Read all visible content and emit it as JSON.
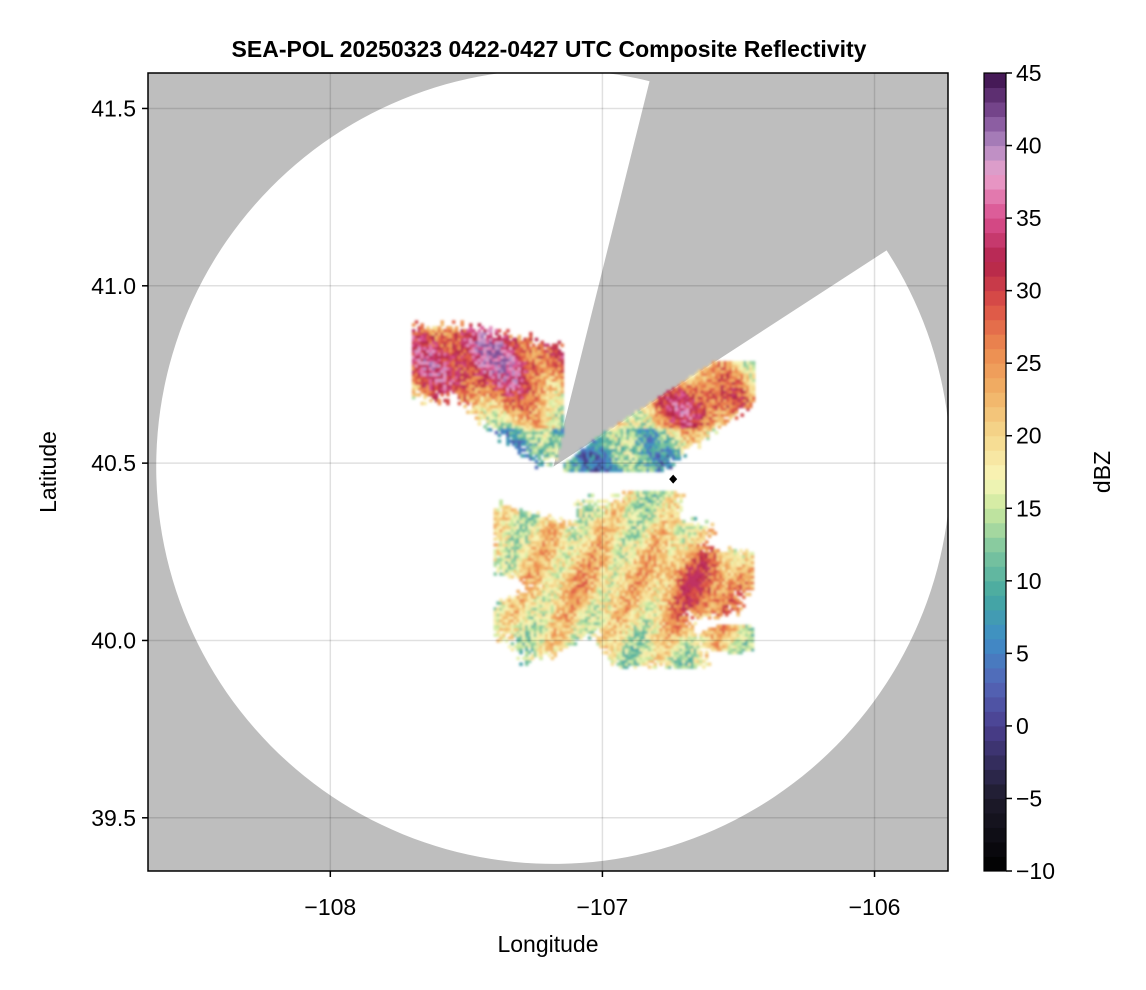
{
  "chart_data": {
    "type": "heatmap",
    "title": "SEA-POL 20250323 0422-0427 UTC Composite Reflectivity",
    "xlabel": "Longitude",
    "ylabel": "Latitude",
    "xlim": [
      -108.67,
      -105.73
    ],
    "ylim": [
      39.35,
      41.6
    ],
    "xticks": [
      -108,
      -107,
      -106
    ],
    "xtick_labels": [
      "−108",
      "−107",
      "−106"
    ],
    "yticks": [
      39.5,
      40.0,
      40.5,
      41.0,
      41.5
    ],
    "ytick_labels": [
      "39.5",
      "40.0",
      "40.5",
      "41.0",
      "41.5"
    ],
    "grid": true,
    "radar_site": {
      "lon": -107.18,
      "lat": 40.49
    },
    "radar_coverage_radius_lat": 1.12,
    "no_data_color": "#bebebe",
    "coverage_color": "#ffffff",
    "blocked_sectors_azimuth_deg": [
      [
        14,
        57
      ]
    ],
    "marker": {
      "lon": -106.74,
      "lat": 40.455,
      "shape": "diamond",
      "color": "#000000"
    },
    "echo_regions": [
      {
        "name": "northern band",
        "lon": [
          -107.7,
          -106.45
        ],
        "lat": [
          40.45,
          40.96
        ],
        "peak_dbz": 42
      },
      {
        "name": "southern cluster",
        "lon": [
          -107.4,
          -106.45
        ],
        "lat": [
          39.92,
          40.42
        ],
        "peak_dbz": 33
      }
    ],
    "colorbar": {
      "label": "dBZ",
      "min": -10,
      "max": 45,
      "ticks": [
        -10,
        -5,
        0,
        5,
        10,
        15,
        20,
        25,
        30,
        35,
        40,
        45
      ],
      "tick_labels": [
        "−10",
        "−5",
        "0",
        "5",
        "10",
        "15",
        "20",
        "25",
        "30",
        "35",
        "40",
        "45"
      ],
      "colormap_stops": [
        {
          "v": -10,
          "c": "#000000"
        },
        {
          "v": -5,
          "c": "#1e1b2b"
        },
        {
          "v": 0,
          "c": "#4a3f8f"
        },
        {
          "v": 3,
          "c": "#5366b8"
        },
        {
          "v": 6,
          "c": "#3f8ec6"
        },
        {
          "v": 9,
          "c": "#45a8a0"
        },
        {
          "v": 12,
          "c": "#7cc59f"
        },
        {
          "v": 15,
          "c": "#cbe99f"
        },
        {
          "v": 17,
          "c": "#f8f6b8"
        },
        {
          "v": 20,
          "c": "#f5d88d"
        },
        {
          "v": 23,
          "c": "#f1b266"
        },
        {
          "v": 26,
          "c": "#ec8a4f"
        },
        {
          "v": 29,
          "c": "#dc5146"
        },
        {
          "v": 32,
          "c": "#b3234b"
        },
        {
          "v": 35,
          "c": "#d94f8f"
        },
        {
          "v": 38,
          "c": "#eaa3cd"
        },
        {
          "v": 40,
          "c": "#b28ac2"
        },
        {
          "v": 42,
          "c": "#7f4f97"
        },
        {
          "v": 45,
          "c": "#3b0f4a"
        }
      ]
    }
  }
}
